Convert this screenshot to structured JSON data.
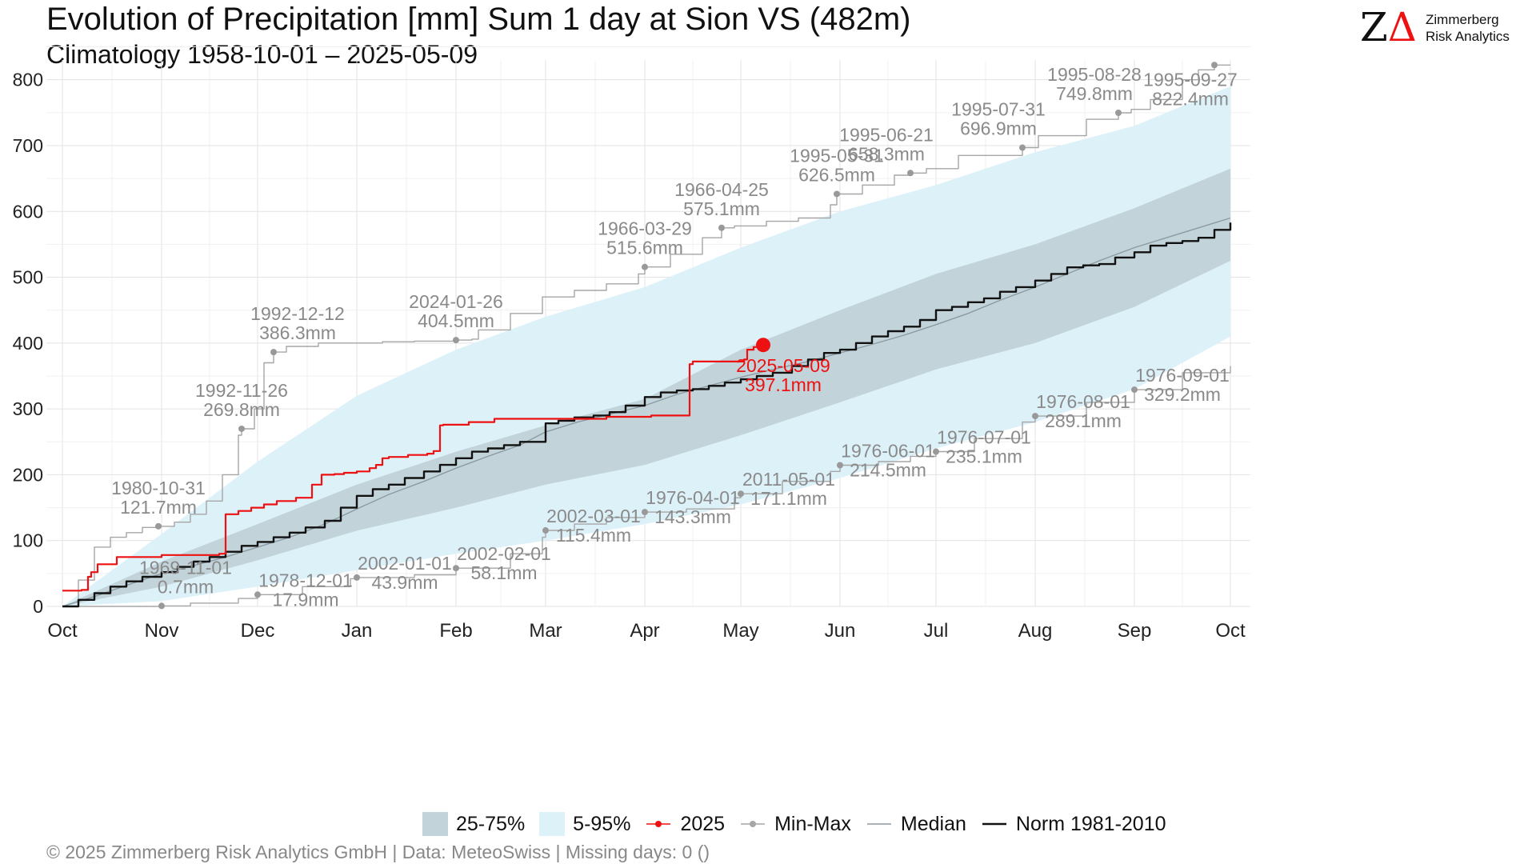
{
  "header": {
    "title": "Evolution of Precipitation [mm] Sum 1 day at Sion  VS (482m)",
    "subtitle": "Climatology 1958-10-01 – 2025-05-09"
  },
  "logo": {
    "mark": "ZΔ",
    "line1": "Zimmerberg",
    "line2": "Risk Analytics"
  },
  "footer": {
    "text": "©  2025 Zimmerberg Risk Analytics GmbH | Data: MeteoSwiss | Missing days: 0 ()"
  },
  "colors": {
    "band_25_75": "#c2d4da",
    "band_5_95": "#ddf1f9",
    "current_2025": "#ee1111",
    "minmax": "#a6a6a6",
    "median": "#8c9ba3",
    "norm": "#111111",
    "grid": "#e3e3e3"
  },
  "legend": [
    {
      "key": "band_25_75",
      "label": "25-75%",
      "kind": "box"
    },
    {
      "key": "band_5_95",
      "label": "5-95%",
      "kind": "box"
    },
    {
      "key": "current_2025",
      "label": "2025",
      "kind": "line-dot"
    },
    {
      "key": "minmax",
      "label": "Min-Max",
      "kind": "line-dot"
    },
    {
      "key": "median",
      "label": "Median",
      "kind": "line"
    },
    {
      "key": "norm",
      "label": "Norm 1981-2010",
      "kind": "line"
    }
  ],
  "chart_data": {
    "type": "line",
    "title": "Evolution of Precipitation [mm] Sum 1 day at Sion  VS (482m)",
    "subtitle": "Climatology 1958-10-01 – 2025-05-09",
    "x_unit": "days since Oct 1",
    "x_ticks": [
      {
        "label": "Oct",
        "day": 0
      },
      {
        "label": "Nov",
        "day": 31
      },
      {
        "label": "Dec",
        "day": 61
      },
      {
        "label": "Jan",
        "day": 92
      },
      {
        "label": "Feb",
        "day": 123
      },
      {
        "label": "Mar",
        "day": 151
      },
      {
        "label": "Apr",
        "day": 182
      },
      {
        "label": "May",
        "day": 212
      },
      {
        "label": "Jun",
        "day": 243
      },
      {
        "label": "Jul",
        "day": 273
      },
      {
        "label": "Aug",
        "day": 304
      },
      {
        "label": "Sep",
        "day": 335
      },
      {
        "label": "Oct",
        "day": 365
      }
    ],
    "y_ticks": [
      0,
      100,
      200,
      300,
      400,
      500,
      600,
      700,
      800
    ],
    "xlim": [
      0,
      365
    ],
    "ylim": [
      0,
      830
    ],
    "grid": true,
    "legend_position": "bottom",
    "band_5_95": {
      "x": [
        0,
        31,
        61,
        92,
        123,
        151,
        182,
        212,
        243,
        273,
        304,
        335,
        365
      ],
      "lower": [
        0,
        8,
        30,
        55,
        80,
        100,
        125,
        155,
        195,
        240,
        280,
        330,
        410
      ],
      "upper": [
        0,
        110,
        220,
        320,
        390,
        440,
        485,
        545,
        600,
        640,
        690,
        730,
        790
      ]
    },
    "band_25_75": {
      "x": [
        0,
        31,
        61,
        92,
        123,
        151,
        182,
        212,
        243,
        273,
        304,
        335,
        365
      ],
      "lower": [
        0,
        30,
        70,
        115,
        150,
        185,
        215,
        260,
        310,
        360,
        400,
        455,
        525
      ],
      "upper": [
        0,
        68,
        125,
        185,
        235,
        275,
        315,
        390,
        450,
        505,
        550,
        605,
        665
      ]
    },
    "series": [
      {
        "name": "2025",
        "key": "current_2025",
        "x": [
          0,
          6,
          8,
          9,
          11,
          17,
          31,
          49,
          51,
          55,
          59,
          63,
          67,
          73,
          78,
          81,
          85,
          88,
          92,
          96,
          98,
          100,
          102,
          108,
          114,
          116,
          118,
          119,
          127,
          135,
          170,
          184,
          196,
          197,
          213,
          214,
          216,
          219
        ],
        "y": [
          24,
          25,
          45,
          52,
          64,
          75,
          78,
          80,
          140,
          145,
          150,
          155,
          160,
          165,
          185,
          200,
          201,
          203,
          205,
          210,
          215,
          225,
          227,
          230,
          232,
          236,
          275,
          276,
          280,
          285,
          288,
          290,
          368,
          372,
          375,
          390,
          394,
          397.1
        ]
      },
      {
        "name": "Norm 1981-2010",
        "key": "norm",
        "x": [
          0,
          5,
          10,
          15,
          20,
          25,
          31,
          36,
          41,
          46,
          51,
          56,
          61,
          66,
          71,
          76,
          82,
          87,
          92,
          97,
          102,
          107,
          113,
          118,
          123,
          128,
          133,
          138,
          143,
          151,
          155,
          160,
          166,
          171,
          176,
          182,
          187,
          192,
          197,
          202,
          207,
          212,
          217,
          222,
          228,
          233,
          238,
          243,
          248,
          253,
          258,
          263,
          268,
          273,
          278,
          283,
          288,
          293,
          298,
          304,
          309,
          314,
          319,
          324,
          329,
          335,
          340,
          345,
          350,
          355,
          360,
          365
        ],
        "y": [
          0,
          10,
          20,
          30,
          38,
          45,
          52,
          60,
          68,
          75,
          83,
          92,
          98,
          105,
          112,
          120,
          130,
          150,
          168,
          178,
          185,
          195,
          205,
          215,
          225,
          235,
          240,
          245,
          250,
          278,
          282,
          287,
          290,
          295,
          305,
          318,
          325,
          328,
          330,
          335,
          340,
          345,
          350,
          355,
          365,
          375,
          385,
          390,
          400,
          410,
          418,
          425,
          435,
          450,
          455,
          462,
          468,
          478,
          485,
          495,
          505,
          515,
          518,
          520,
          530,
          538,
          548,
          552,
          555,
          560,
          572,
          583
        ]
      },
      {
        "name": "Median",
        "key": "median",
        "x": [
          0,
          10,
          20,
          31,
          41,
          51,
          61,
          71,
          82,
          92,
          102,
          113,
          123,
          133,
          143,
          151,
          161,
          171,
          182,
          192,
          202,
          212,
          222,
          233,
          243,
          253,
          263,
          273,
          283,
          293,
          304,
          314,
          324,
          335,
          345,
          355,
          365
        ],
        "y": [
          0,
          15,
          32,
          50,
          62,
          75,
          90,
          105,
          125,
          148,
          170,
          190,
          210,
          228,
          245,
          265,
          280,
          292,
          305,
          322,
          335,
          348,
          360,
          372,
          385,
          398,
          412,
          428,
          445,
          465,
          485,
          505,
          525,
          545,
          560,
          575,
          590
        ]
      },
      {
        "name": "Min",
        "key": "minmax",
        "x": [
          0,
          30,
          31,
          40,
          55,
          61,
          75,
          90,
          92,
          110,
          123,
          140,
          150,
          151,
          160,
          170,
          182,
          195,
          210,
          212,
          225,
          240,
          243,
          255,
          265,
          273,
          285,
          300,
          304,
          320,
          335,
          350,
          365
        ],
        "y": [
          0,
          0,
          0.7,
          5,
          12,
          17.9,
          30,
          42,
          43.9,
          48,
          58.1,
          80,
          105,
          115.4,
          125,
          135,
          143.3,
          148,
          165,
          171.1,
          190,
          205,
          214.5,
          220,
          228,
          235.1,
          255,
          280,
          289.1,
          310,
          329.2,
          355,
          365
        ]
      },
      {
        "name": "Max",
        "key": "minmax",
        "x": [
          0,
          5,
          10,
          15,
          20,
          25,
          30,
          35,
          40,
          45,
          50,
          55,
          56,
          60,
          63,
          66,
          70,
          80,
          92,
          100,
          110,
          123,
          128,
          130,
          140,
          150,
          160,
          170,
          180,
          182,
          190,
          200,
          206,
          210,
          220,
          230,
          240,
          242,
          250,
          260,
          265,
          270,
          280,
          300,
          305,
          320,
          330,
          334,
          340,
          350,
          355,
          360,
          365
        ],
        "y": [
          0,
          40,
          90,
          105,
          112,
          120,
          121.7,
          128,
          140,
          160,
          200,
          260,
          269.8,
          300,
          370,
          386.3,
          395,
          400,
          400,
          402,
          403,
          404.5,
          406,
          420,
          445,
          470,
          480,
          490,
          505,
          515.6,
          535,
          560,
          575.1,
          578,
          585,
          590,
          610,
          626.5,
          640,
          655,
          658.3,
          665,
          685,
          696.9,
          715,
          740,
          749.8,
          755,
          770,
          800,
          815,
          822.4,
          822.4
        ]
      }
    ],
    "current_point": {
      "label_date": "2025-05-09",
      "label_value": "397.1mm",
      "x": 219,
      "y": 397.1
    },
    "annotations": [
      {
        "date": "1969-11-01",
        "value": "0.7mm",
        "x": 31,
        "y": 0.7,
        "pos": "above-right",
        "kind": "min"
      },
      {
        "date": "1978-12-01",
        "value": "17.9mm",
        "x": 61,
        "y": 17.9,
        "pos": "right",
        "kind": "min"
      },
      {
        "date": "2002-01-01",
        "value": "43.9mm",
        "x": 92,
        "y": 43.9,
        "pos": "right",
        "kind": "min"
      },
      {
        "date": "2002-02-01",
        "value": "58.1mm",
        "x": 123,
        "y": 58.1,
        "pos": "right",
        "kind": "min"
      },
      {
        "date": "2002-03-01",
        "value": "115.4mm",
        "x": 151,
        "y": 115.4,
        "pos": "right",
        "kind": "min"
      },
      {
        "date": "1976-04-01",
        "value": "143.3mm",
        "x": 182,
        "y": 143.3,
        "pos": "right",
        "kind": "min"
      },
      {
        "date": "2011-05-01",
        "value": "171.1mm",
        "x": 212,
        "y": 171.1,
        "pos": "right",
        "kind": "min"
      },
      {
        "date": "1976-06-01",
        "value": "214.5mm",
        "x": 243,
        "y": 214.5,
        "pos": "right",
        "kind": "min"
      },
      {
        "date": "1976-07-01",
        "value": "235.1mm",
        "x": 273,
        "y": 235.1,
        "pos": "right",
        "kind": "min"
      },
      {
        "date": "1976-08-01",
        "value": "289.1mm",
        "x": 304,
        "y": 289.1,
        "pos": "right",
        "kind": "min"
      },
      {
        "date": "1976-09-01",
        "value": "329.2mm",
        "x": 335,
        "y": 329.2,
        "pos": "right",
        "kind": "min"
      },
      {
        "date": "1980-10-31",
        "value": "121.7mm",
        "x": 30,
        "y": 121.7,
        "pos": "above",
        "kind": "max"
      },
      {
        "date": "1992-11-26",
        "value": "269.8mm",
        "x": 56,
        "y": 269.8,
        "pos": "above",
        "kind": "max"
      },
      {
        "date": "1992-12-12",
        "value": "386.3mm",
        "x": 66,
        "y": 386.3,
        "pos": "above-right",
        "kind": "max"
      },
      {
        "date": "2024-01-26",
        "value": "404.5mm",
        "x": 123,
        "y": 404.5,
        "pos": "above",
        "kind": "max"
      },
      {
        "date": "1966-03-29",
        "value": "515.6mm",
        "x": 182,
        "y": 515.6,
        "pos": "above",
        "kind": "max"
      },
      {
        "date": "1966-04-25",
        "value": "575.1mm",
        "x": 206,
        "y": 575.1,
        "pos": "above",
        "kind": "max"
      },
      {
        "date": "1995-05-31",
        "value": "626.5mm",
        "x": 242,
        "y": 626.5,
        "pos": "above",
        "kind": "max"
      },
      {
        "date": "1995-06-21",
        "value": "658.3mm",
        "x": 265,
        "y": 658.3,
        "pos": "above-left",
        "kind": "max"
      },
      {
        "date": "1995-07-31",
        "value": "696.9mm",
        "x": 300,
        "y": 696.9,
        "pos": "above-left",
        "kind": "max"
      },
      {
        "date": "1995-08-28",
        "value": "749.8mm",
        "x": 330,
        "y": 749.8,
        "pos": "above-left",
        "kind": "max"
      },
      {
        "date": "1995-09-27",
        "value": "822.4mm",
        "x": 360,
        "y": 822.4,
        "pos": "below-left",
        "kind": "max"
      }
    ]
  }
}
